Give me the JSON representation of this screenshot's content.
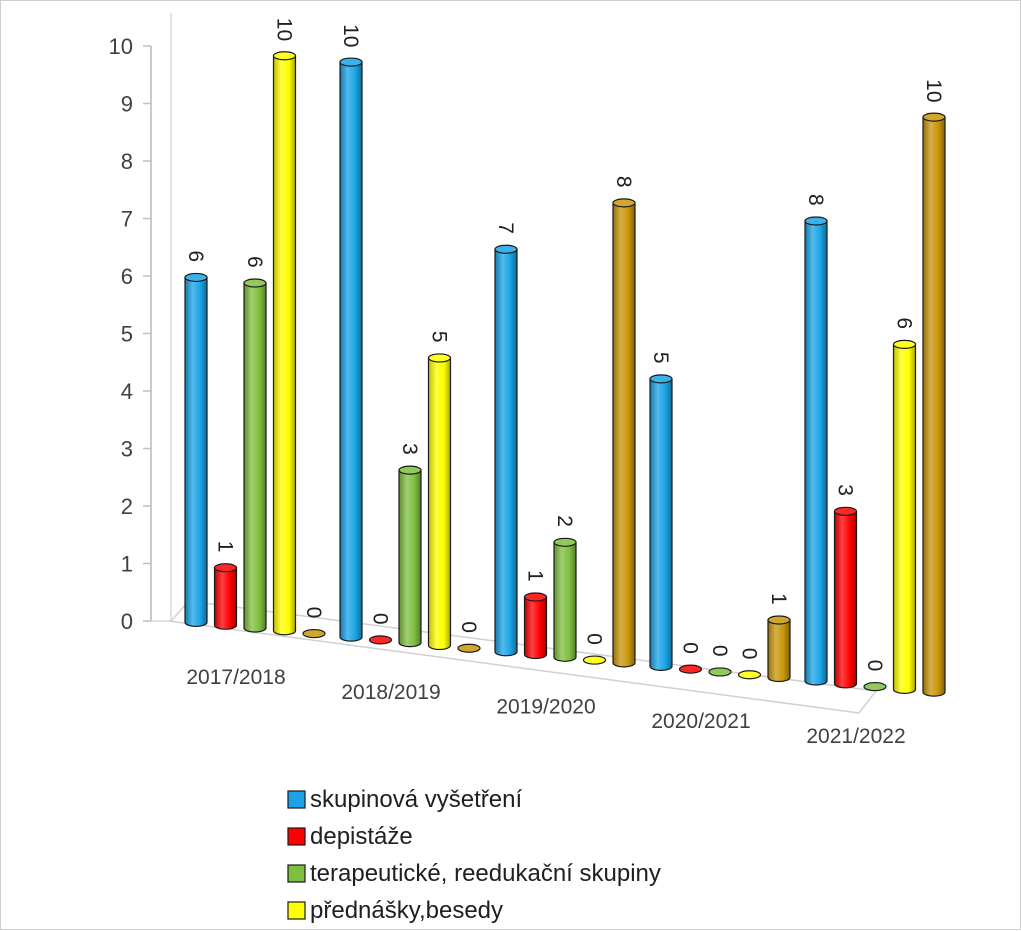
{
  "chart_data": {
    "type": "bar",
    "style": "3d-cylinder",
    "categories": [
      "2017/2018",
      "2018/2019",
      "2019/2020",
      "2020/2021",
      "2021/2022"
    ],
    "series": [
      {
        "name": "skupinová vyšetření",
        "color": "#1aa3e6",
        "values": [
          6,
          10,
          7,
          5,
          8
        ]
      },
      {
        "name": "depistáže",
        "color": "#ff0000",
        "values": [
          1,
          0,
          1,
          0,
          3
        ]
      },
      {
        "name": "terapeutické, reedukační skupiny",
        "color": "#7fbf3f",
        "values": [
          6,
          3,
          2,
          0,
          0
        ]
      },
      {
        "name": "přednášky,besedy",
        "color": "#ffff00",
        "values": [
          10,
          5,
          0,
          0,
          6
        ]
      },
      {
        "name": "",
        "color": "#c8960a",
        "values": [
          0,
          0,
          8,
          1,
          10
        ]
      }
    ],
    "data_labels": [
      [
        "6",
        "10",
        "7",
        "5",
        "8"
      ],
      [
        "1",
        "0",
        "1",
        "0",
        "3"
      ],
      [
        "6",
        "3",
        "2",
        "0",
        "0"
      ],
      [
        "10",
        "5",
        "0",
        "0",
        "6"
      ],
      [
        "0",
        "0",
        "8",
        "1",
        "10"
      ]
    ],
    "y_ticks": [
      "0",
      "1",
      "2",
      "3",
      "4",
      "5",
      "6",
      "7",
      "8",
      "9",
      "10"
    ],
    "ylim": [
      0,
      10
    ],
    "grid": false,
    "legend_position": "bottom"
  }
}
